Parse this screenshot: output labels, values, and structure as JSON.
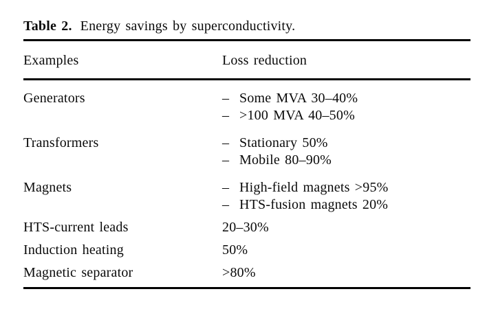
{
  "caption": {
    "label": "Table 2.",
    "text": "Energy savings by superconductivity."
  },
  "table": {
    "headers": [
      "Examples",
      "Loss reduction"
    ],
    "bullet": "–",
    "rows": [
      {
        "example": "Generators",
        "items": [
          "Some MVA 30–40%",
          ">100 MVA 40–50%"
        ]
      },
      {
        "example": "Transformers",
        "items": [
          "Stationary 50%",
          "Mobile 80–90%"
        ]
      },
      {
        "example": "Magnets",
        "items": [
          "High-field magnets >95%",
          "HTS-fusion magnets 20%"
        ]
      },
      {
        "example": "HTS-current leads",
        "items": [
          "20–30%"
        ]
      },
      {
        "example": "Induction heating",
        "items": [
          "50%"
        ]
      },
      {
        "example": "Magnetic separator",
        "items": [
          ">80%"
        ]
      }
    ]
  },
  "colors": {
    "text": "#0a0a0a",
    "background": "#ffffff",
    "rule": "#000000"
  }
}
